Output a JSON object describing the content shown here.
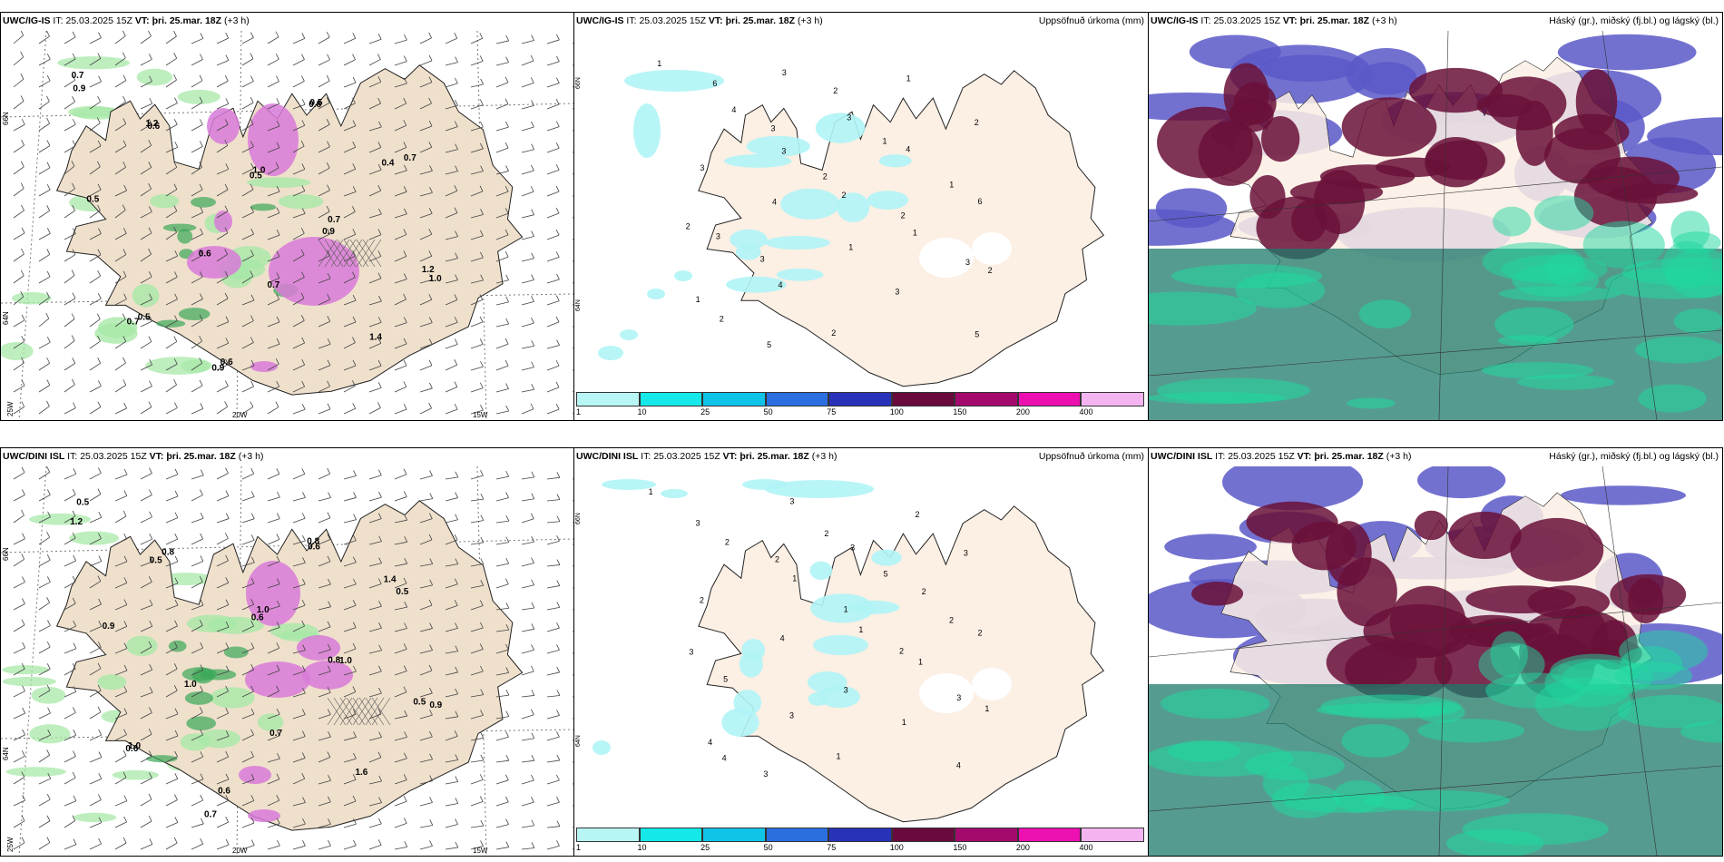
{
  "rows": [
    {
      "model": "UWC/IG-IS",
      "it_label": "IT:",
      "it_value": "25.03.2025 15Z",
      "vt_label": "VT:",
      "vt_value": "þri. 25.mar. 18Z",
      "offset": "(+3 h)",
      "precip_title": "Uppsöfnuð úrkoma (mm)",
      "cloud_title": "Háský (gr.), miðský (fj.bl.) og lágský (bl.)",
      "wind_values": [
        "0.7",
        "0.6",
        "0.5",
        "0.7",
        "1.2",
        "0.5",
        "0.9",
        "0.8",
        "0.7",
        "0.5",
        "0.6",
        "0.7",
        "1.4",
        "0.9",
        "1.2",
        "1.0",
        "0.9",
        "1.0",
        "0.7",
        "0.6",
        "0.5",
        "0.4"
      ],
      "precip_values": [
        "1",
        "4",
        "3",
        "2",
        "1",
        "2",
        "2",
        "3",
        "3",
        "4",
        "6",
        "3",
        "4",
        "2",
        "1",
        "2",
        "3",
        "4",
        "1",
        "3",
        "5",
        "6",
        "3",
        "2",
        "2",
        "3",
        "1",
        "5",
        "2",
        "1",
        "1",
        "2",
        "3"
      ]
    },
    {
      "model": "UWC/DINI ISL",
      "it_label": "IT:",
      "it_value": "25.03.2025 15Z",
      "vt_label": "VT:",
      "vt_value": "þri. 25.mar. 18Z",
      "offset": "(+3 h)",
      "precip_title": "Uppsöfnuð úrkoma (mm)",
      "cloud_title": "Háský (gr.), miðský (fj.bl.) og lágský (bl.)",
      "wind_values": [
        "0.5",
        "0.8",
        "1.0",
        "1.0",
        "0.9",
        "1.0",
        "0.6",
        "0.8",
        "1.4",
        "0.9",
        "1.0",
        "0.7",
        "1.6",
        "1.2",
        "0.5",
        "0.6",
        "0.8",
        "0.5",
        "0.6",
        "0.7",
        "0.6",
        "0.5"
      ],
      "precip_values": [
        "1",
        "2",
        "1",
        "1",
        "1",
        "1",
        "4",
        "3",
        "3",
        "2",
        "2",
        "5",
        "3",
        "1",
        "2",
        "3",
        "2",
        "4",
        "3",
        "1",
        "4",
        "3",
        "2",
        "1",
        "2",
        "3",
        "4",
        "3",
        "2",
        "5",
        "2",
        "3"
      ]
    }
  ],
  "lat_labels": [
    "66N",
    "64N"
  ],
  "lon_labels": [
    "25W",
    "20W",
    "15W"
  ],
  "colorbar": {
    "ticks": [
      "1",
      "10",
      "25",
      "50",
      "75",
      "100",
      "150",
      "200",
      "400"
    ],
    "colors": [
      "#b8f5f5",
      "#14e8e8",
      "#10c4e8",
      "#2a6ee0",
      "#2832b8",
      "#6a0a3c",
      "#a40a6e",
      "#ec10b0",
      "#f4b4f0"
    ]
  },
  "colors": {
    "land": "#efe0cc",
    "land_precip": "#fcefe4",
    "precip_shade": "#b0f4f6",
    "wind_rain": "#a8e8a8",
    "wind_rain_dark": "#3aa858",
    "snow": "#d87ad8",
    "cloud_high": "#6a1038",
    "cloud_mid": "#5a58c8",
    "cloud_low": "#1e7a6a",
    "cloud_low_bright": "#20d8a0"
  }
}
